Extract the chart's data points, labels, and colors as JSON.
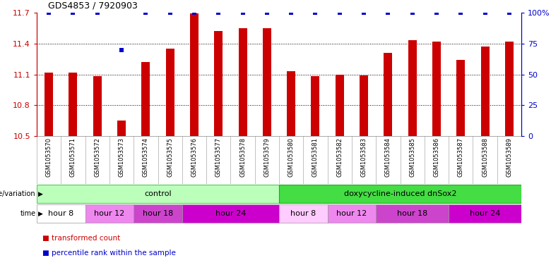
{
  "title": "GDS4853 / 7920903",
  "samples": [
    "GSM1053570",
    "GSM1053571",
    "GSM1053572",
    "GSM1053573",
    "GSM1053574",
    "GSM1053575",
    "GSM1053576",
    "GSM1053577",
    "GSM1053578",
    "GSM1053579",
    "GSM1053580",
    "GSM1053581",
    "GSM1053582",
    "GSM1053583",
    "GSM1053584",
    "GSM1053585",
    "GSM1053586",
    "GSM1053587",
    "GSM1053588",
    "GSM1053589"
  ],
  "bar_values": [
    11.12,
    11.12,
    11.08,
    10.65,
    11.22,
    11.35,
    11.69,
    11.52,
    11.55,
    11.55,
    11.13,
    11.08,
    11.1,
    11.09,
    11.31,
    11.43,
    11.42,
    11.24,
    11.37,
    11.42
  ],
  "percentile_values": [
    100,
    100,
    100,
    70,
    100,
    100,
    100,
    100,
    100,
    100,
    100,
    100,
    100,
    100,
    100,
    100,
    100,
    100,
    100,
    100
  ],
  "ymin": 10.5,
  "ymax": 11.7,
  "yticks": [
    10.5,
    10.8,
    11.1,
    11.4,
    11.7
  ],
  "ytick_labels": [
    "10.5",
    "10.8",
    "11.1",
    "11.4",
    "11.7"
  ],
  "right_yticks": [
    0,
    25,
    50,
    75,
    100
  ],
  "right_ytick_labels": [
    "0",
    "25",
    "50",
    "75",
    "100%"
  ],
  "bar_color": "#cc0000",
  "dot_color": "#0000cc",
  "bg_color": "#ffffff",
  "left_axis_color": "#cc0000",
  "right_axis_color": "#0000cc",
  "genotype_groups": [
    {
      "text": "control",
      "start": 0,
      "end": 9,
      "color": "#bbffbb",
      "border_color": "#55cc55"
    },
    {
      "text": "doxycycline-induced dnSox2",
      "start": 10,
      "end": 19,
      "color": "#44dd44",
      "border_color": "#22aa22"
    }
  ],
  "time_groups": [
    {
      "text": "hour 8",
      "start": 0,
      "end": 1,
      "color": "#ffffff",
      "border_color": "#999999"
    },
    {
      "text": "hour 12",
      "start": 2,
      "end": 3,
      "color": "#ee88ee",
      "border_color": "#999999"
    },
    {
      "text": "hour 18",
      "start": 4,
      "end": 5,
      "color": "#cc44cc",
      "border_color": "#999999"
    },
    {
      "text": "hour 24",
      "start": 6,
      "end": 9,
      "color": "#cc00cc",
      "border_color": "#999999"
    },
    {
      "text": "hour 8",
      "start": 10,
      "end": 11,
      "color": "#ffccff",
      "border_color": "#999999"
    },
    {
      "text": "hour 12",
      "start": 12,
      "end": 13,
      "color": "#ee88ee",
      "border_color": "#999999"
    },
    {
      "text": "hour 18",
      "start": 14,
      "end": 16,
      "color": "#cc44cc",
      "border_color": "#999999"
    },
    {
      "text": "hour 24",
      "start": 17,
      "end": 19,
      "color": "#cc00cc",
      "border_color": "#999999"
    }
  ],
  "sample_bg_color": "#cccccc",
  "sample_border_color": "#aaaaaa",
  "n_samples": 20,
  "legend_items": [
    {
      "color": "#cc0000",
      "label": "transformed count"
    },
    {
      "color": "#0000cc",
      "label": "percentile rank within the sample"
    }
  ]
}
